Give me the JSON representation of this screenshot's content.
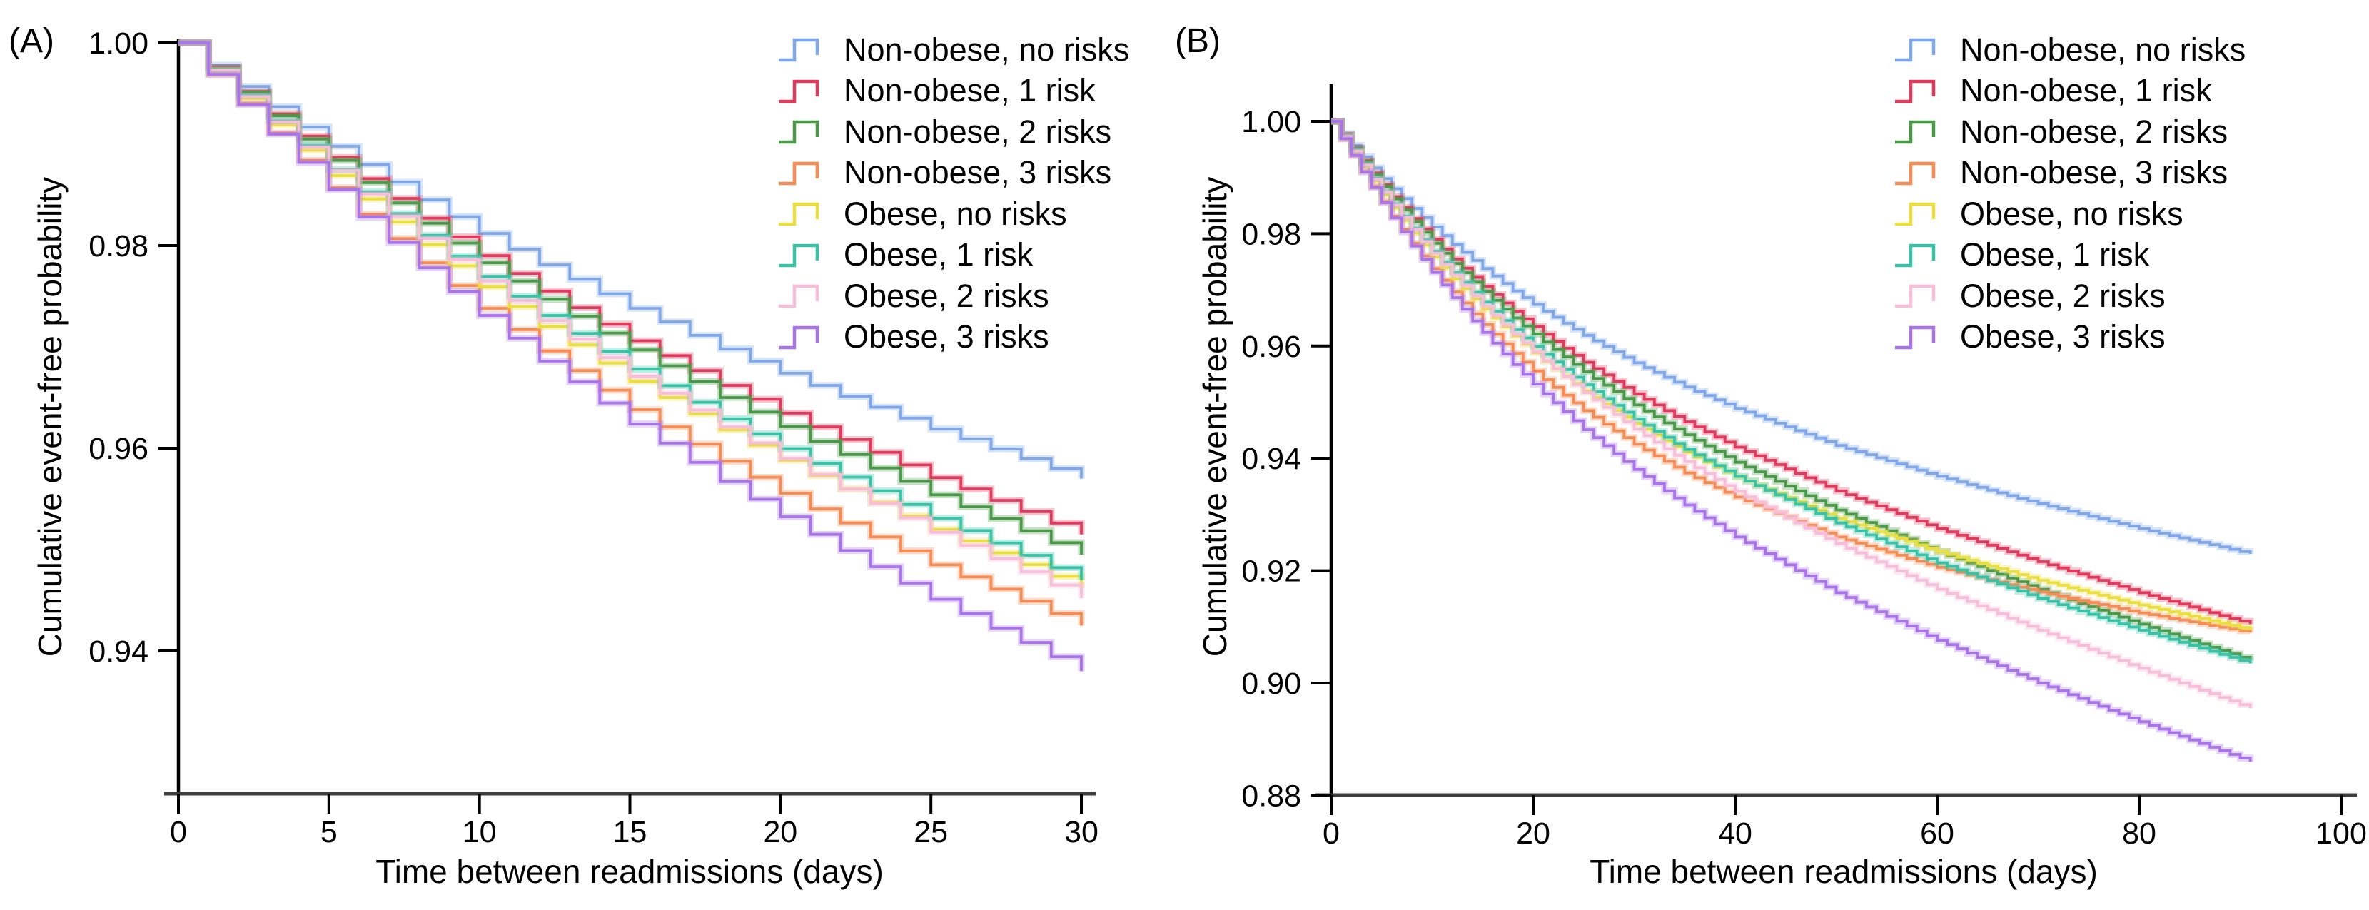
{
  "figure": {
    "panels": [
      {
        "label": "(A)",
        "x_axis": {
          "label": "Time between readmissions (days)",
          "tick_labels": [
            "0",
            "5",
            "10",
            "15",
            "20",
            "25",
            "30"
          ],
          "tick_values": [
            0,
            5,
            10,
            15,
            20,
            25,
            30
          ],
          "min": 0,
          "max": 30,
          "curve_end_day": 30
        },
        "y_axis": {
          "label": "Cumulative event-free probability",
          "tick_labels": [
            "1.00",
            "0.98",
            "0.96",
            "0.94"
          ],
          "tick_values": [
            1.0,
            0.98,
            0.96,
            0.94
          ],
          "min": 0.926,
          "max": 1.0
        }
      },
      {
        "label": "(B)",
        "x_axis": {
          "label": "Time between readmissions (days)",
          "tick_labels": [
            "0",
            "20",
            "40",
            "60",
            "80",
            "100"
          ],
          "tick_values": [
            0,
            20,
            40,
            60,
            80,
            100
          ],
          "min": 0,
          "max": 100,
          "curve_end_day": 91
        },
        "y_axis": {
          "label": "Cumulative event-free probability",
          "tick_labels": [
            "1.00",
            "0.98",
            "0.96",
            "0.94",
            "0.92",
            "0.90",
            "0.88"
          ],
          "tick_values": [
            1.0,
            0.98,
            0.96,
            0.94,
            0.92,
            0.9,
            0.88
          ],
          "min": 0.88,
          "max": 1.006
        }
      }
    ]
  },
  "chart_data": {
    "type": "line",
    "subtype": "step-survival",
    "title": "",
    "xlabel": "Time between readmissions (days)",
    "ylabel": "Cumulative event-free probability",
    "grid": false,
    "legend_position": "top-right-inside",
    "panel_a_xlim": [
      0,
      30
    ],
    "panel_b_xlim": [
      0,
      100
    ],
    "panel_a_ylim": [
      0.926,
      1.0
    ],
    "panel_b_ylim": [
      0.88,
      1.006
    ],
    "anchor_days": [
      0,
      1,
      2,
      3,
      4,
      5,
      6,
      8,
      10,
      12,
      15,
      18,
      21,
      25,
      30,
      35,
      40,
      50,
      60,
      70,
      80,
      91
    ],
    "series": [
      {
        "name": "Non-obese, no risks",
        "color": "#7FA7E9",
        "values": [
          1,
          0.9978,
          0.9957,
          0.9937,
          0.9917,
          0.9898,
          0.988,
          0.9845,
          0.9812,
          0.9781,
          0.9738,
          0.9698,
          0.9662,
          0.9619,
          0.957,
          0.9527,
          0.9489,
          0.9423,
          0.9368,
          0.9319,
          0.9275,
          0.923
        ]
      },
      {
        "name": "Non-obese, 1 risk",
        "color": "#E23A5C",
        "values": [
          1,
          0.9976,
          0.9952,
          0.993,
          0.9908,
          0.9887,
          0.9866,
          0.9827,
          0.979,
          0.9755,
          0.9706,
          0.9662,
          0.9621,
          0.9571,
          0.9515,
          0.9465,
          0.942,
          0.9342,
          0.9275,
          0.9216,
          0.9161,
          0.9105
        ]
      },
      {
        "name": "Non-obese, 2 risks",
        "color": "#4A9949",
        "values": [
          1,
          0.9975,
          0.9951,
          0.9928,
          0.9905,
          0.9884,
          0.9862,
          0.9822,
          0.9783,
          0.9747,
          0.9697,
          0.965,
          0.9607,
          0.9554,
          0.9495,
          0.9442,
          0.9393,
          0.9308,
          0.9234,
          0.9167,
          0.9105,
          0.904
        ]
      },
      {
        "name": "Non-obese, 3 risks",
        "color": "#F78B53",
        "values": [
          1,
          0.9969,
          0.994,
          0.9911,
          0.9884,
          0.9857,
          0.9831,
          0.9783,
          0.9738,
          0.9696,
          0.9638,
          0.9587,
          0.954,
          0.9485,
          0.9425,
          0.9374,
          0.9331,
          0.926,
          0.9206,
          0.9162,
          0.9125,
          0.909
        ]
      },
      {
        "name": "Obese, no risks",
        "color": "#EBDF3E",
        "values": [
          1,
          0.9972,
          0.9945,
          0.9919,
          0.9894,
          0.9869,
          0.9846,
          0.9801,
          0.9759,
          0.972,
          0.9666,
          0.9618,
          0.9573,
          0.952,
          0.9462,
          0.9411,
          0.9367,
          0.9293,
          0.9234,
          0.9183,
          0.9139,
          0.9095
        ]
      },
      {
        "name": "Obese, 1 risk",
        "color": "#38C2A7",
        "values": [
          1,
          0.9973,
          0.9948,
          0.9923,
          0.9899,
          0.9875,
          0.9853,
          0.981,
          0.9769,
          0.9731,
          0.9678,
          0.9629,
          0.9585,
          0.9531,
          0.947,
          0.9416,
          0.9368,
          0.9285,
          0.9214,
          0.9151,
          0.9094,
          0.9035
        ]
      },
      {
        "name": "Obese, 2 risks",
        "color": "#F8BDD9",
        "values": [
          1,
          0.9973,
          0.9947,
          0.9922,
          0.9897,
          0.9874,
          0.9851,
          0.9807,
          0.9765,
          0.9726,
          0.9671,
          0.9621,
          0.9574,
          0.9517,
          0.9452,
          0.9394,
          0.9341,
          0.9248,
          0.9167,
          0.9094,
          0.9026,
          0.8955
        ]
      },
      {
        "name": "Obese, 3 risks",
        "color": "#A873EB",
        "values": [
          1,
          0.9969,
          0.9939,
          0.991,
          0.9882,
          0.9855,
          0.9828,
          0.9778,
          0.9731,
          0.9686,
          0.9624,
          0.9567,
          0.9515,
          0.9451,
          0.938,
          0.9317,
          0.926,
          0.9161,
          0.9076,
          0.9,
          0.8931,
          0.886
        ]
      }
    ]
  }
}
